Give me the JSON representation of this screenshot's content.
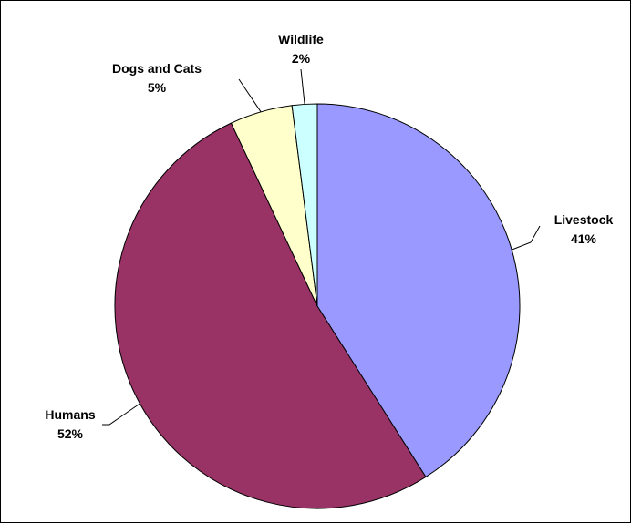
{
  "chart_data": {
    "type": "pie",
    "title": "",
    "start_angle_deg": 0,
    "direction": "clockwise",
    "slices": [
      {
        "label": "Livestock",
        "value": 41,
        "value_label": "41%",
        "color": "#9999FF"
      },
      {
        "label": "Humans",
        "value": 52,
        "value_label": "52%",
        "color": "#993366"
      },
      {
        "label": "Dogs and Cats",
        "value": 5,
        "value_label": "5%",
        "color": "#FFFFCC"
      },
      {
        "label": "Wildlife",
        "value": 2,
        "value_label": "2%",
        "color": "#CCFFFF"
      }
    ],
    "slice_outline_color": "#000000",
    "leader_lines": true,
    "legend": "none",
    "border": true
  }
}
